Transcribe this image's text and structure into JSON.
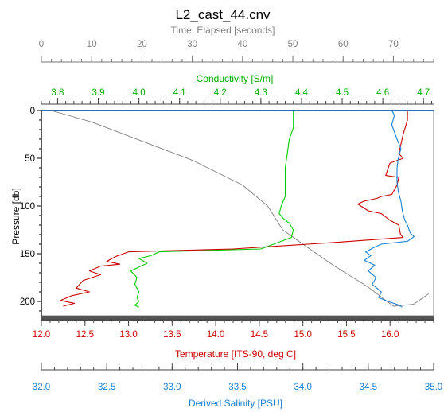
{
  "chart_data": {
    "type": "line",
    "title": "L2_cast_44.cnv",
    "colors": {
      "time": "#808080",
      "conductivity": "#00cc00",
      "temperature": "#cc0000",
      "salinity": "#1a7fd4",
      "axis_dark": "#555555",
      "top_axis_line": "#2a6fb5"
    },
    "y_axis": {
      "label": "Pressure [db]",
      "range": [
        0,
        215
      ],
      "inverted": true,
      "ticks": [
        "0",
        "50",
        "100",
        "150",
        "200"
      ]
    },
    "x_axes": {
      "time": {
        "label": "Time, Elapsed [seconds]",
        "range": [
          0,
          78
        ],
        "position": "top",
        "ticks": [
          "0",
          "10",
          "20",
          "30",
          "40",
          "50",
          "60",
          "70"
        ]
      },
      "conductivity": {
        "label": "Conductivity [S/m]",
        "range": [
          3.76,
          4.725
        ],
        "position": "top",
        "ticks": [
          "3.8",
          "3.9",
          "4.0",
          "4.1",
          "4.2",
          "4.3",
          "4.4",
          "4.5",
          "4.6",
          "4.7"
        ]
      },
      "temperature": {
        "label": "Temperature [ITS-90, deg C]",
        "range": [
          12.0,
          16.5
        ],
        "position": "bottom",
        "ticks": [
          "12.0",
          "12.5",
          "13.0",
          "13.5",
          "14.0",
          "14.5",
          "15.0",
          "15.5",
          "16.0"
        ]
      },
      "salinity": {
        "label": "Derived Salinity [PSU]",
        "range": [
          32.0,
          35.0
        ],
        "position": "bottom",
        "ticks": [
          "32.0",
          "32.5",
          "33.0",
          "33.5",
          "34.0",
          "34.5",
          "35.0"
        ]
      }
    },
    "series": [
      {
        "key": "time",
        "points": [
          [
            2,
            0
          ],
          [
            10,
            12
          ],
          [
            20,
            32
          ],
          [
            30,
            52
          ],
          [
            40,
            78
          ],
          [
            45,
            100
          ],
          [
            48,
            125
          ],
          [
            52,
            140
          ],
          [
            58,
            162
          ],
          [
            65,
            185
          ],
          [
            70,
            205
          ],
          [
            74,
            203
          ],
          [
            77,
            192
          ]
        ]
      },
      {
        "key": "conductivity",
        "points": [
          [
            4.38,
            0
          ],
          [
            4.38,
            5
          ],
          [
            4.38,
            18
          ],
          [
            4.37,
            30
          ],
          [
            4.365,
            45
          ],
          [
            4.36,
            60
          ],
          [
            4.36,
            75
          ],
          [
            4.36,
            90
          ],
          [
            4.35,
            100
          ],
          [
            4.345,
            108
          ],
          [
            4.355,
            113
          ],
          [
            4.37,
            118
          ],
          [
            4.38,
            125
          ],
          [
            4.375,
            133
          ],
          [
            4.3,
            145
          ],
          [
            4.05,
            148
          ],
          [
            4.03,
            152
          ],
          [
            4.0,
            155
          ],
          [
            4.02,
            160
          ],
          [
            3.98,
            168
          ],
          [
            3.995,
            175
          ],
          [
            3.99,
            182
          ],
          [
            4.0,
            190
          ],
          [
            3.995,
            196
          ],
          [
            4.0,
            200
          ],
          [
            3.99,
            204
          ],
          [
            4.0,
            206
          ]
        ]
      },
      {
        "key": "temperature",
        "points": [
          [
            16.2,
            0
          ],
          [
            16.2,
            10
          ],
          [
            16.15,
            25
          ],
          [
            16.1,
            45
          ],
          [
            16.15,
            50
          ],
          [
            16.0,
            55
          ],
          [
            15.98,
            60
          ],
          [
            15.95,
            68
          ],
          [
            16.1,
            70
          ],
          [
            16.08,
            78
          ],
          [
            16.02,
            88
          ],
          [
            15.9,
            90
          ],
          [
            15.85,
            92
          ],
          [
            15.7,
            95
          ],
          [
            15.63,
            98
          ],
          [
            15.75,
            105
          ],
          [
            15.9,
            108
          ],
          [
            16.0,
            115
          ],
          [
            16.1,
            120
          ],
          [
            16.12,
            130
          ],
          [
            16.15,
            133
          ],
          [
            15.4,
            138
          ],
          [
            14.2,
            145
          ],
          [
            13.0,
            148
          ],
          [
            12.85,
            153
          ],
          [
            12.75,
            158
          ],
          [
            12.9,
            161
          ],
          [
            12.68,
            163
          ],
          [
            12.55,
            168
          ],
          [
            12.68,
            172
          ],
          [
            12.48,
            178
          ],
          [
            12.4,
            186
          ],
          [
            12.55,
            190
          ],
          [
            12.35,
            194
          ],
          [
            12.22,
            199
          ],
          [
            12.38,
            202
          ],
          [
            12.25,
            205
          ]
        ]
      },
      {
        "key": "salinity",
        "points": [
          [
            34.68,
            0
          ],
          [
            34.7,
            5
          ],
          [
            34.68,
            15
          ],
          [
            34.72,
            30
          ],
          [
            34.75,
            40
          ],
          [
            34.73,
            50
          ],
          [
            34.72,
            60
          ],
          [
            34.72,
            75
          ],
          [
            34.73,
            85
          ],
          [
            34.75,
            95
          ],
          [
            34.76,
            105
          ],
          [
            34.78,
            115
          ],
          [
            34.8,
            120
          ],
          [
            34.82,
            128
          ],
          [
            34.85,
            132
          ],
          [
            34.8,
            137
          ],
          [
            34.6,
            140
          ],
          [
            34.55,
            143
          ],
          [
            34.48,
            148
          ],
          [
            34.52,
            152
          ],
          [
            34.47,
            157
          ],
          [
            34.55,
            162
          ],
          [
            34.5,
            168
          ],
          [
            34.56,
            175
          ],
          [
            34.53,
            182
          ],
          [
            34.6,
            190
          ],
          [
            34.58,
            196
          ],
          [
            34.65,
            200
          ],
          [
            34.72,
            203
          ],
          [
            34.76,
            206
          ]
        ]
      }
    ]
  }
}
